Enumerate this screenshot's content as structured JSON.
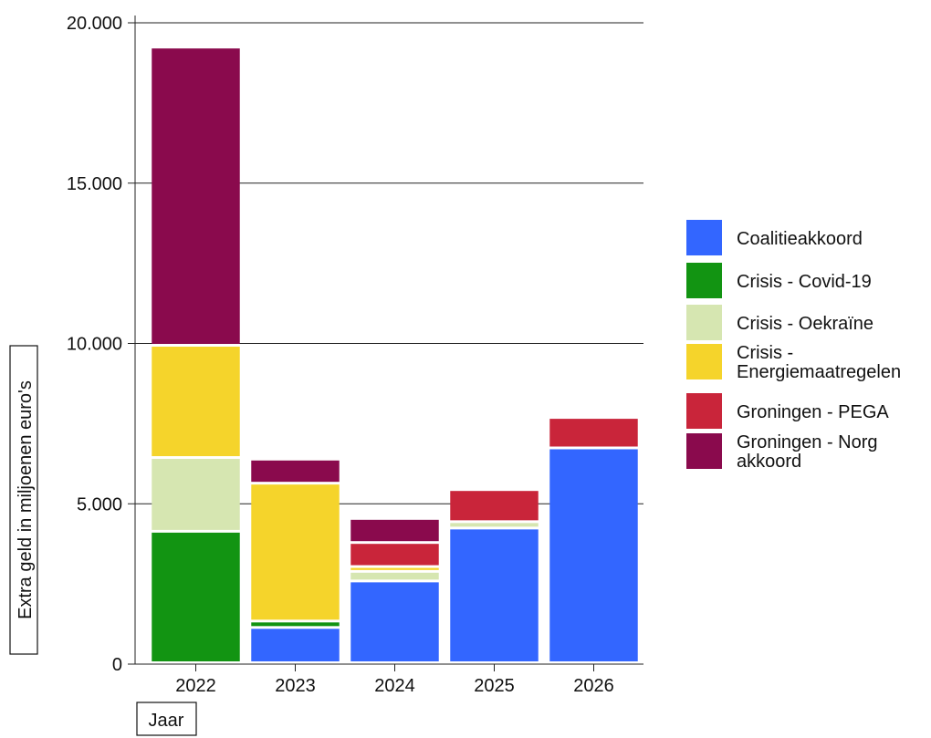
{
  "chart_data": {
    "type": "bar",
    "stacked": true,
    "categories": [
      "2022",
      "2023",
      "2024",
      "2025",
      "2026"
    ],
    "ylabel": "Extra geld in miljoenen euro's",
    "xlabel": "Jaar",
    "ylim": [
      0,
      20000
    ],
    "yticks": [
      0,
      5000,
      10000,
      15000,
      20000
    ],
    "ytick_labels": [
      "0",
      "5.000",
      "10.000",
      "15.000",
      "20.000"
    ],
    "grid": true,
    "legend_position": "right",
    "series": [
      {
        "name": "Coalitieakkoord",
        "color": "#3366ff",
        "values": [
          0,
          1100,
          2550,
          4200,
          6700
        ]
      },
      {
        "name": "Crisis - Covid-19",
        "color": "#129412",
        "values": [
          4100,
          200,
          0,
          0,
          0
        ]
      },
      {
        "name": "Crisis - Oekraïne",
        "color": "#d6e6b1",
        "values": [
          2300,
          0,
          300,
          200,
          0
        ]
      },
      {
        "name": "Crisis - Energiemaatregelen",
        "color": "#f5d42b",
        "values": [
          3500,
          4300,
          150,
          0,
          0
        ]
      },
      {
        "name": "Groningen - PEGA",
        "color": "#c9253a",
        "values": [
          0,
          0,
          750,
          1000,
          950
        ]
      },
      {
        "name": "Groningen - Norg akkoord",
        "color": "#8a0a4d",
        "values": [
          9300,
          750,
          750,
          0,
          0
        ]
      }
    ]
  }
}
